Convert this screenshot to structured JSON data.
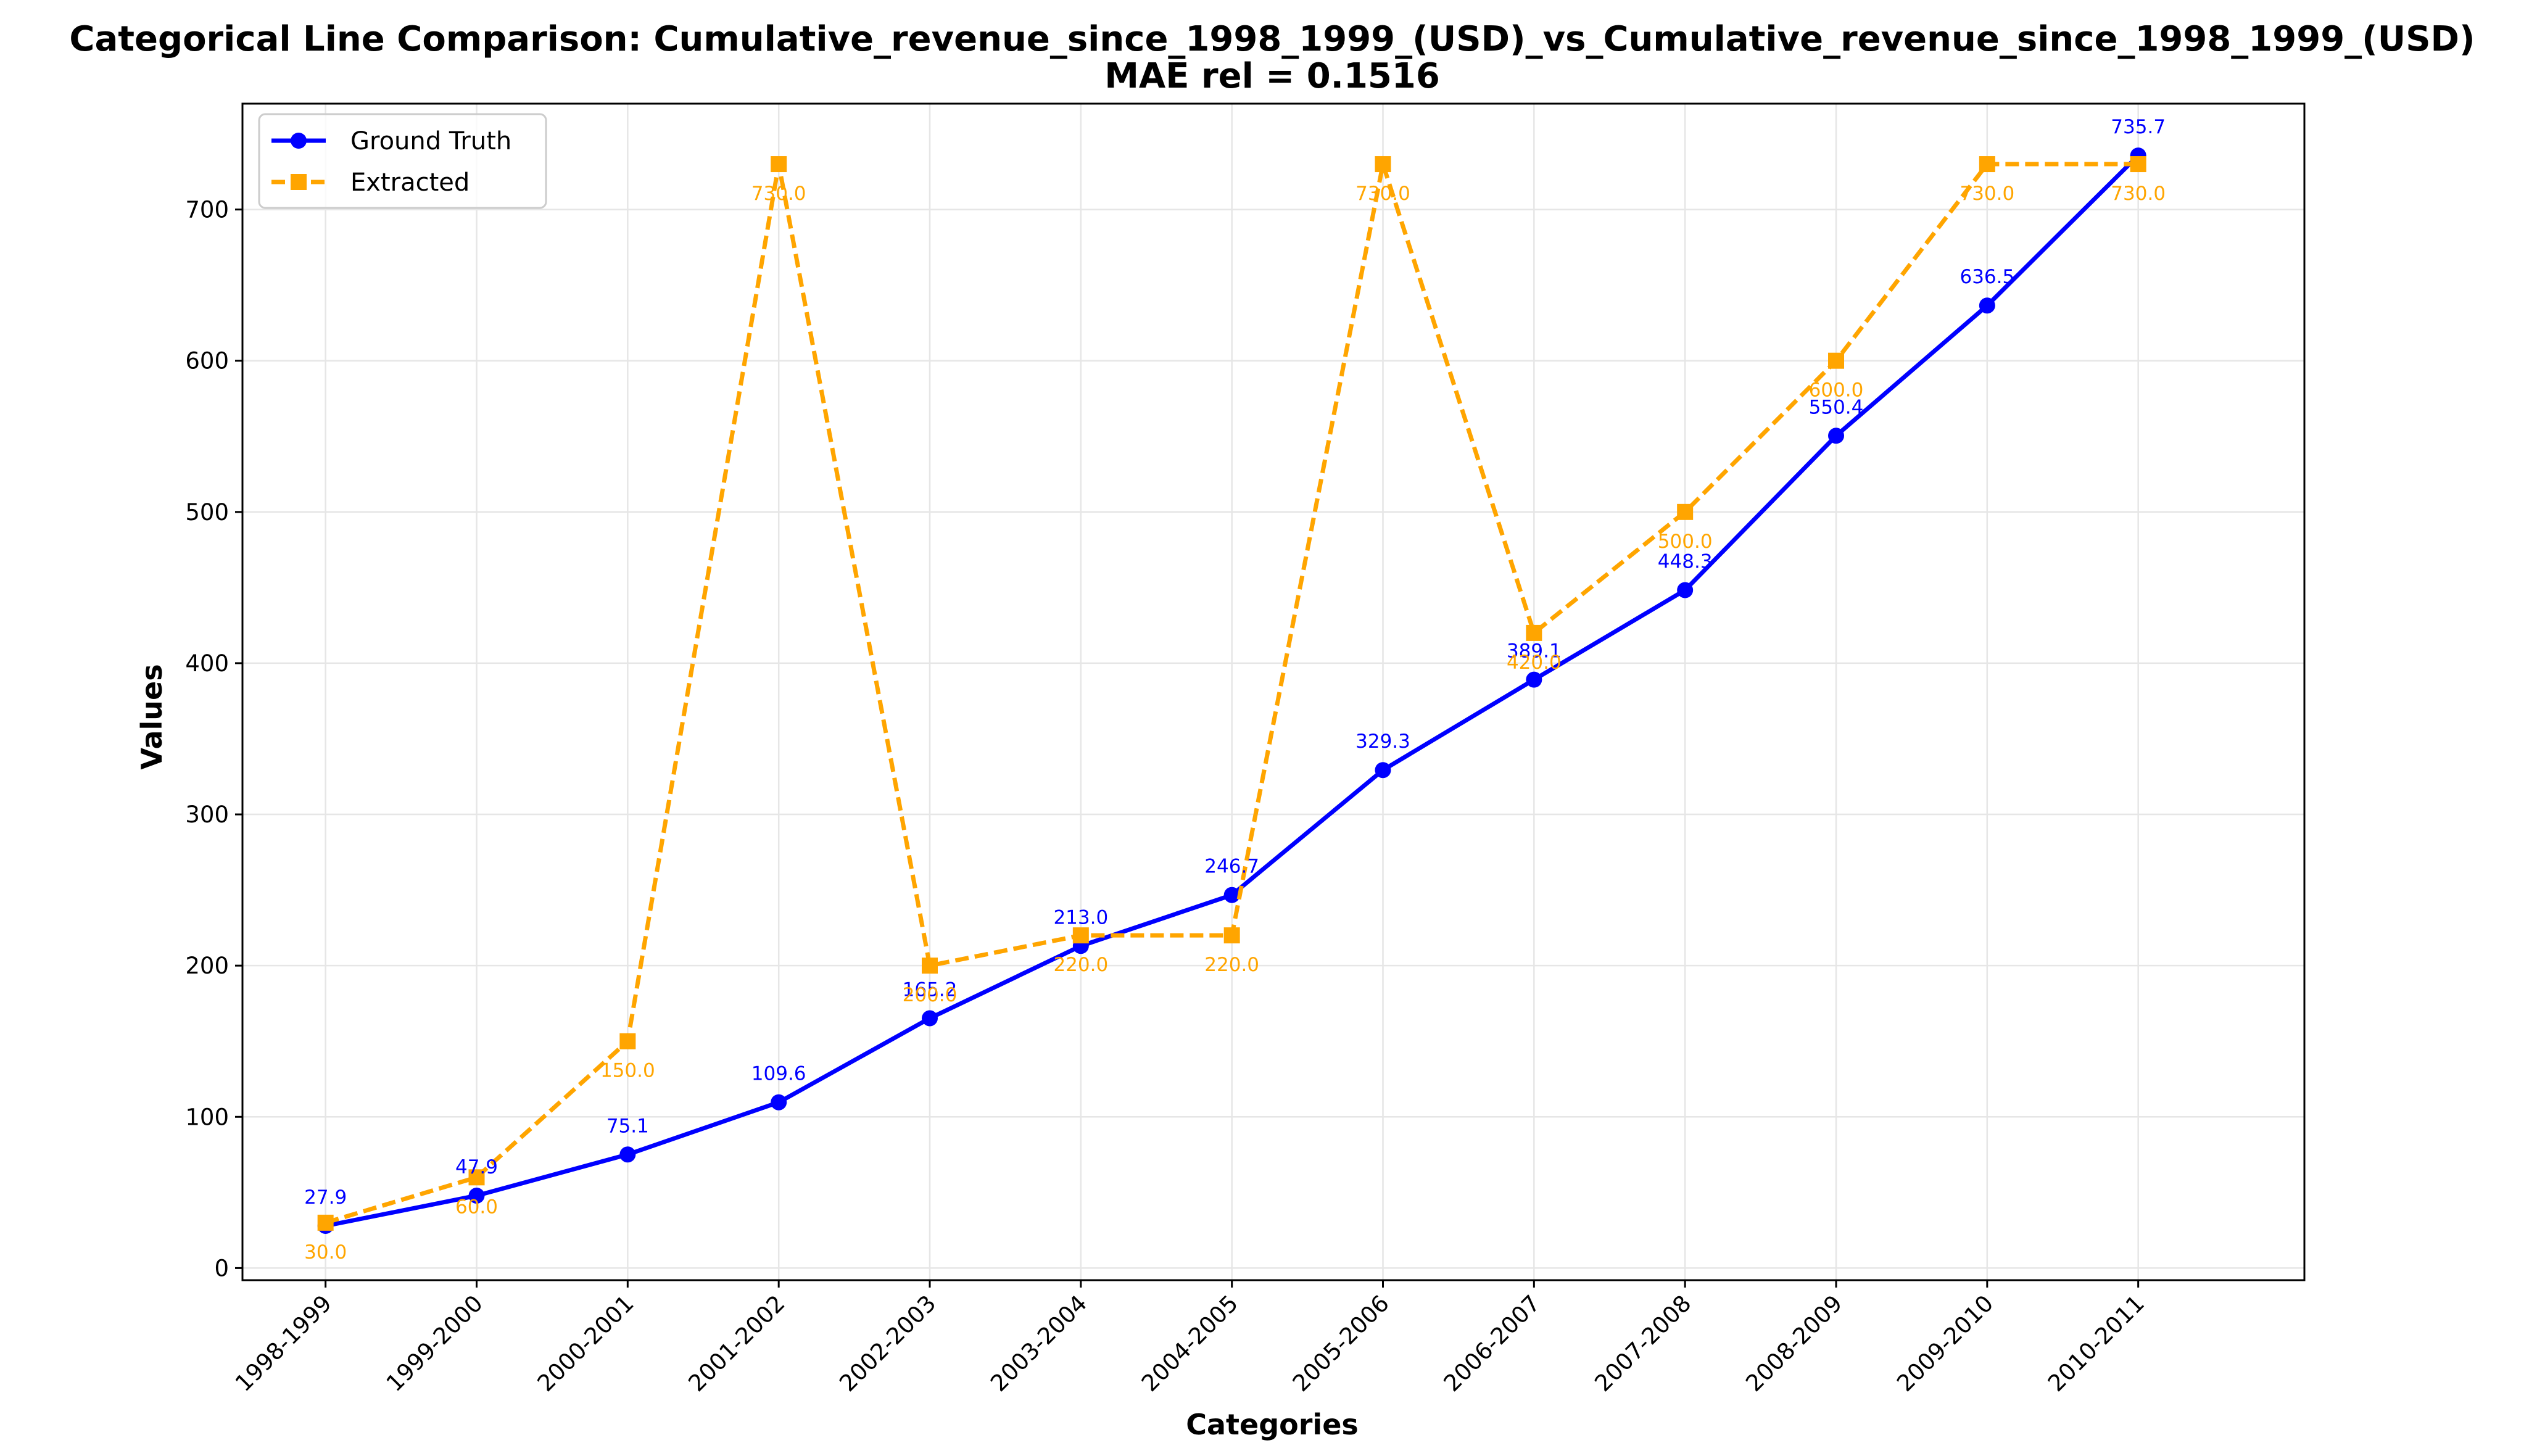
{
  "chart_data": {
    "type": "line",
    "title": "Categorical Line Comparison: Cumulative_revenue_since_1998_1999_(USD)_vs_Cumulative_revenue_since_1998_1999_(USD)",
    "subtitle": "MAE rel = 0.1516",
    "xlabel": "Categories",
    "ylabel": "Values",
    "categories": [
      "1998-1999",
      "1999-2000",
      "2000-2001",
      "2001-2002",
      "2002-2003",
      "2003-2004",
      "2004-2005",
      "2005-2006",
      "2006-2007",
      "2007-2008",
      "2008-2009",
      "2009-2010",
      "2010-2011"
    ],
    "ylim": [
      -8,
      770
    ],
    "yticks": [
      0,
      100,
      200,
      300,
      400,
      500,
      600,
      700
    ],
    "grid": true,
    "legend_position": "top-left",
    "series": [
      {
        "name": "Ground Truth",
        "color": "#0000ff",
        "style": "solid",
        "marker": "circle",
        "values": [
          27.9,
          47.9,
          75.1,
          109.6,
          165.2,
          213.0,
          246.7,
          329.3,
          389.1,
          448.3,
          550.4,
          636.5,
          735.7
        ],
        "labels": [
          "27.9",
          "47.9",
          "75.1",
          "109.6",
          "165.2",
          "213.0",
          "246.7",
          "329.3",
          "389.1",
          "448.3",
          "550.4",
          "636.5",
          "735.7"
        ]
      },
      {
        "name": "Extracted",
        "color": "#ffa500",
        "style": "dashed",
        "marker": "square",
        "values": [
          30.0,
          60.0,
          150.0,
          730.0,
          200.0,
          220.0,
          220.0,
          730.0,
          420.0,
          500.0,
          600.0,
          730.0,
          730.0
        ],
        "labels": [
          "30.0",
          "60.0",
          "150.0",
          "730.0",
          "200.0",
          "220.0",
          "220.0",
          "730.0",
          "420.0",
          "500.0",
          "600.0",
          "730.0",
          "730.0"
        ]
      }
    ]
  }
}
